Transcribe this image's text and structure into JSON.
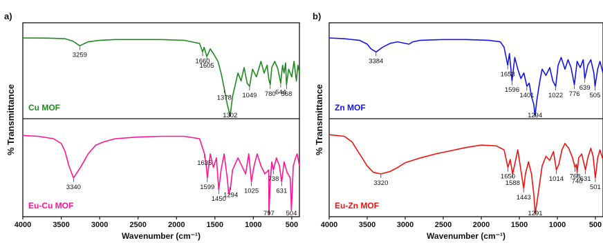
{
  "chart_data": [
    {
      "type": "line",
      "panel_label": "a)",
      "xlabel": "Wavenumber (cm⁻¹)",
      "ylabel": "% Transmittance",
      "xlim": [
        4000,
        400
      ],
      "x_reversed": true,
      "xticks": [
        4000,
        3500,
        3000,
        2500,
        2000,
        1500,
        1000,
        500
      ],
      "series": [
        {
          "name": "Cu MOF",
          "color": "#1e8a1e",
          "x": [
            4000,
            3700,
            3450,
            3350,
            3259,
            3150,
            3000,
            2800,
            2500,
            2200,
            1900,
            1700,
            1660,
            1640,
            1605,
            1560,
            1520,
            1460,
            1420,
            1378,
            1340,
            1302,
            1270,
            1200,
            1160,
            1120,
            1080,
            1049,
            1010,
            960,
            900,
            860,
            820,
            800,
            780,
            760,
            720,
            680,
            644,
            620,
            600,
            580,
            568,
            540,
            500,
            470,
            440,
            420,
            400
          ],
          "y": [
            0,
            0.2,
            1,
            4,
            10,
            5,
            3,
            2,
            2,
            2,
            3,
            7,
            18,
            12,
            24,
            14,
            20,
            30,
            45,
            65,
            85,
            100,
            75,
            45,
            55,
            38,
            58,
            62,
            40,
            50,
            30,
            45,
            35,
            52,
            60,
            38,
            30,
            40,
            58,
            35,
            45,
            32,
            60,
            40,
            50,
            30,
            55,
            35,
            45
          ],
          "peak_labels": [
            3259,
            1660,
            1605,
            1378,
            1302,
            1049,
            780,
            644,
            568
          ]
        },
        {
          "name": "Eu-Cu MOF",
          "color": "#ff1493",
          "x": [
            4000,
            3800,
            3600,
            3500,
            3450,
            3400,
            3340,
            3250,
            3150,
            3050,
            2950,
            2800,
            2500,
            2200,
            1900,
            1700,
            1635,
            1610,
            1599,
            1560,
            1520,
            1480,
            1450,
            1420,
            1380,
            1340,
            1320,
            1294,
            1270,
            1200,
            1150,
            1100,
            1060,
            1025,
            990,
            950,
            900,
            850,
            800,
            797,
            780,
            760,
            738,
            700,
            660,
            631,
            600,
            560,
            520,
            504,
            480,
            450,
            430,
            400
          ],
          "y": [
            2,
            3,
            6,
            12,
            22,
            40,
            55,
            42,
            25,
            14,
            10,
            6,
            4,
            3,
            3,
            6,
            25,
            42,
            55,
            25,
            42,
            30,
            70,
            45,
            25,
            55,
            75,
            65,
            45,
            30,
            40,
            50,
            25,
            60,
            40,
            25,
            40,
            50,
            45,
            100,
            60,
            35,
            45,
            30,
            40,
            60,
            35,
            48,
            55,
            95,
            40,
            30,
            25,
            40
          ],
          "peak_labels": [
            3340,
            1635,
            1599,
            1450,
            1294,
            1025,
            797,
            738,
            631,
            504
          ]
        }
      ]
    },
    {
      "type": "line",
      "panel_label": "b)",
      "xlabel": "Wavenumber (cm⁻¹)",
      "ylabel": "% Transmittance",
      "xlim": [
        4000,
        400
      ],
      "x_reversed": true,
      "xticks": [
        4000,
        3500,
        3000,
        2500,
        2000,
        1500,
        1000,
        500
      ],
      "series": [
        {
          "name": "Zn MOF",
          "color": "#1414e6",
          "x": [
            4000,
            3800,
            3600,
            3500,
            3450,
            3384,
            3300,
            3200,
            3100,
            2950,
            2900,
            2800,
            2500,
            2200,
            1900,
            1750,
            1700,
            1653,
            1630,
            1596,
            1560,
            1520,
            1480,
            1440,
            1401,
            1370,
            1340,
            1310,
            1294,
            1270,
            1230,
            1200,
            1150,
            1100,
            1060,
            1022,
            990,
            950,
            900,
            860,
            820,
            776,
            740,
            700,
            660,
            639,
            600,
            560,
            520,
            505,
            470,
            440,
            400
          ],
          "y": [
            0,
            1,
            3,
            8,
            14,
            18,
            12,
            7,
            5,
            8,
            5,
            3,
            2,
            2,
            3,
            5,
            12,
            35,
            20,
            55,
            25,
            40,
            52,
            45,
            62,
            58,
            75,
            85,
            100,
            80,
            55,
            40,
            48,
            38,
            55,
            62,
            35,
            25,
            40,
            28,
            38,
            60,
            30,
            38,
            28,
            52,
            35,
            28,
            45,
            62,
            40,
            30,
            45
          ],
          "peak_labels": [
            3384,
            1653,
            1596,
            1401,
            1294,
            1022,
            776,
            639,
            505
          ]
        },
        {
          "name": "Eu-Zn MOF",
          "color": "#ee1111",
          "x": [
            4000,
            3800,
            3700,
            3600,
            3500,
            3420,
            3320,
            3200,
            3100,
            3000,
            2800,
            2600,
            2400,
            2200,
            2000,
            1800,
            1700,
            1650,
            1620,
            1588,
            1560,
            1520,
            1480,
            1443,
            1420,
            1380,
            1340,
            1310,
            1291,
            1260,
            1200,
            1150,
            1100,
            1050,
            1014,
            980,
            940,
            900,
            850,
            800,
            768,
            750,
            740,
            720,
            680,
            631,
            600,
            560,
            530,
            501,
            470,
            440,
            400
          ],
          "y": [
            1,
            3,
            10,
            25,
            40,
            48,
            50,
            47,
            42,
            36,
            30,
            25,
            21,
            17,
            14,
            15,
            20,
            42,
            32,
            50,
            38,
            20,
            45,
            68,
            50,
            35,
            50,
            75,
            100,
            80,
            40,
            28,
            33,
            22,
            45,
            38,
            20,
            12,
            18,
            30,
            42,
            38,
            48,
            30,
            25,
            45,
            30,
            18,
            28,
            55,
            30,
            20,
            32
          ],
          "peak_labels": [
            3320,
            1650,
            1588,
            1443,
            1291,
            1014,
            768,
            740,
            631,
            501
          ]
        }
      ]
    }
  ]
}
